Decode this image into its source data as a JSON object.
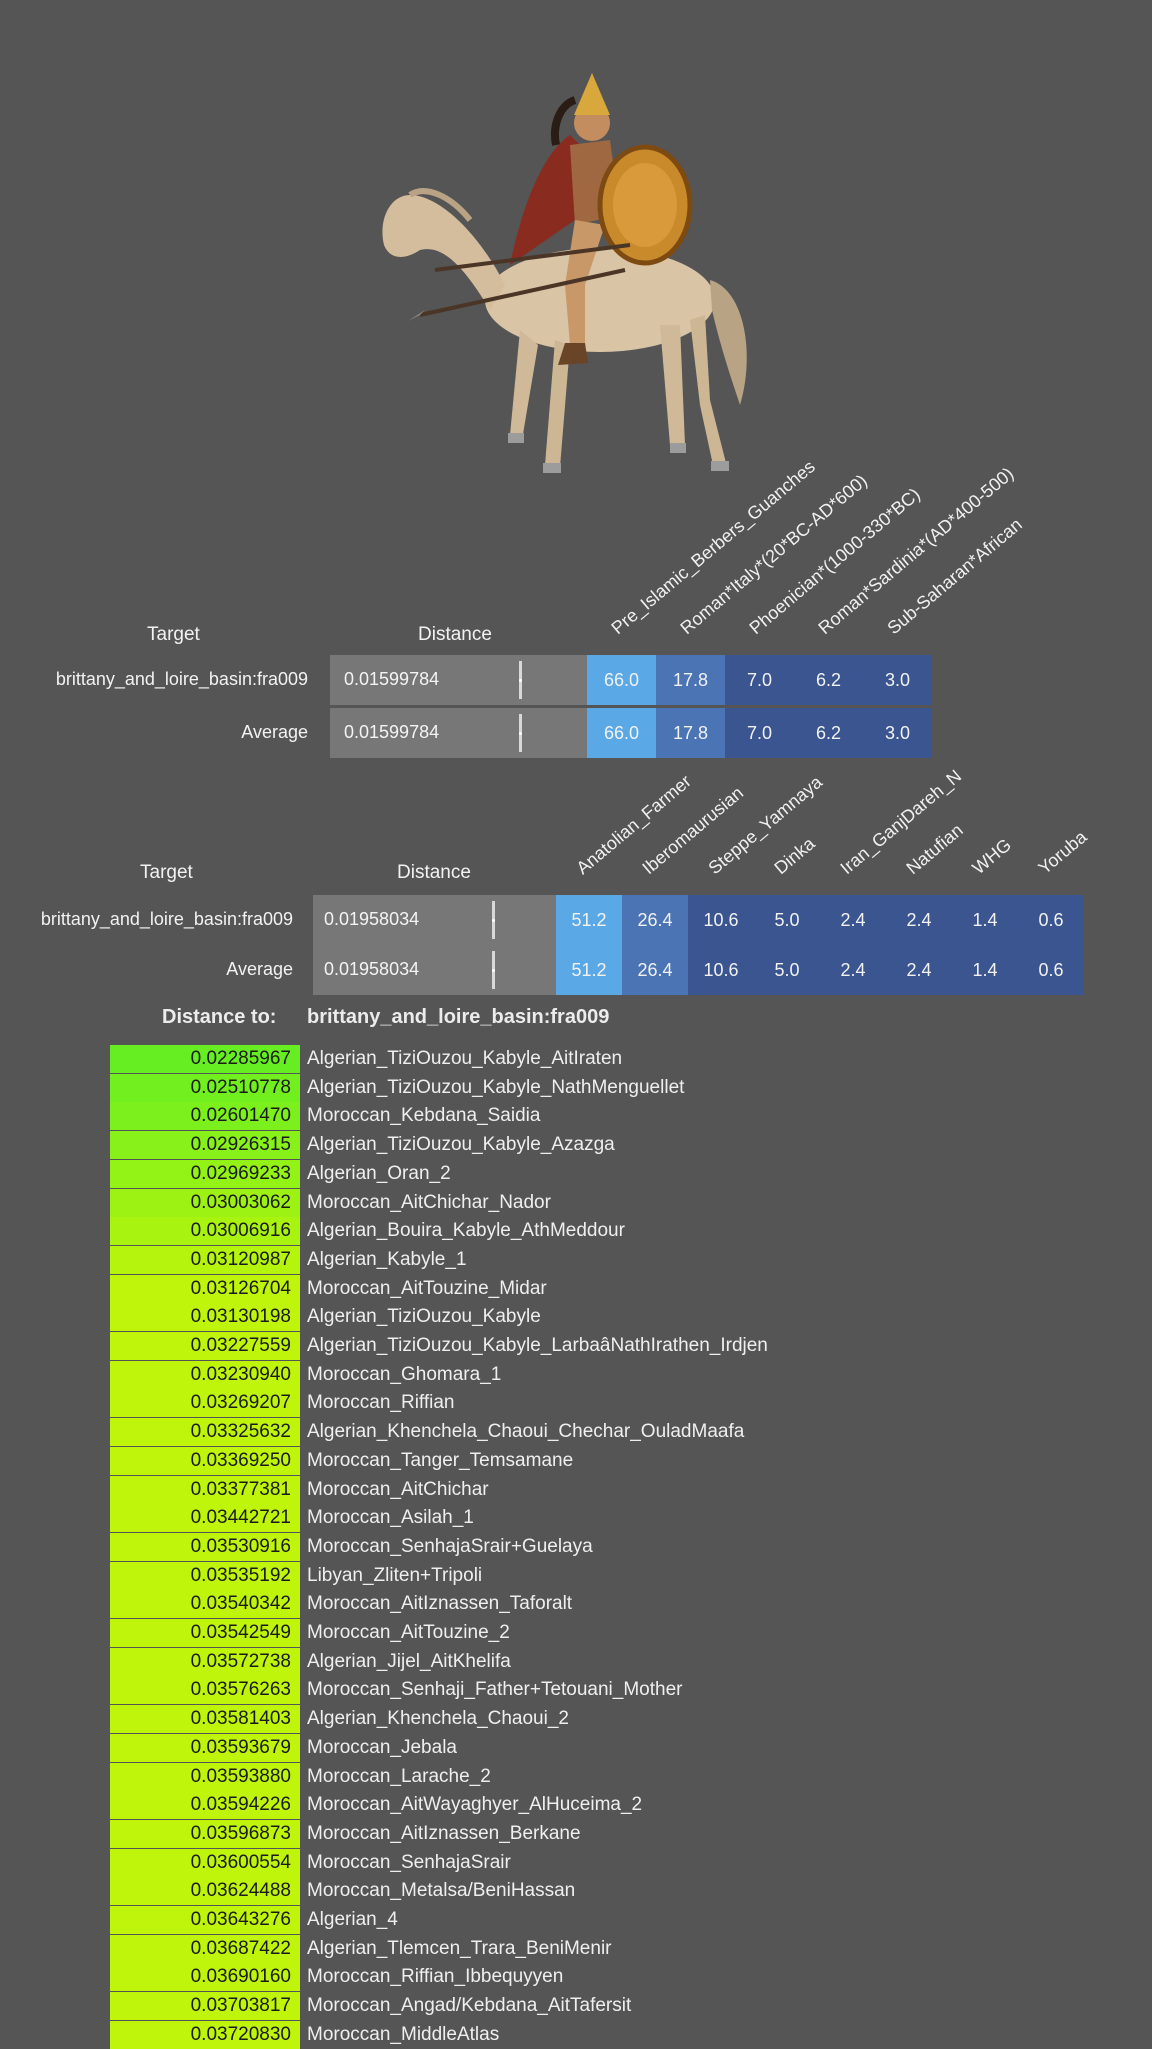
{
  "panel1": {
    "target_header": "Target",
    "distance_header": "Distance",
    "columns": [
      "Pre_Islamic_Berbers_Guanches",
      "Roman*Italy*(20*BC-AD*600)",
      "Phoenician*(1000-330*BC)",
      "Roman*Sardinia*(AD*400-500)",
      "Sub-Saharan*African"
    ],
    "rows": [
      {
        "label": "brittany_and_loire_basin:fra009",
        "distance": "0.01599784",
        "values": [
          "66.0",
          "17.8",
          "7.0",
          "6.2",
          "3.0"
        ]
      },
      {
        "label": "Average",
        "distance": "0.01599784",
        "values": [
          "66.0",
          "17.8",
          "7.0",
          "6.2",
          "3.0"
        ]
      }
    ]
  },
  "panel2": {
    "target_header": "Target",
    "distance_header": "Distance",
    "columns": [
      "Anatolian_Farmer",
      "Iberomaurusian",
      "Steppe_Yamnaya",
      "Dinka",
      "Iran_GanjDareh_N",
      "Natufian",
      "WHG",
      "Yoruba"
    ],
    "rows": [
      {
        "label": "brittany_and_loire_basin:fra009",
        "distance": "0.01958034",
        "values": [
          "51.2",
          "26.4",
          "10.6",
          "5.0",
          "2.4",
          "2.4",
          "1.4",
          "0.6"
        ]
      },
      {
        "label": "Average",
        "distance": "0.01958034",
        "values": [
          "51.2",
          "26.4",
          "10.6",
          "5.0",
          "2.4",
          "2.4",
          "1.4",
          "0.6"
        ]
      }
    ]
  },
  "distance_to": {
    "label": "Distance to:",
    "target": "brittany_and_loire_basin:fra009",
    "items": [
      {
        "value": "0.02285967",
        "name": "Algerian_TiziOuzou_Kabyle_AitIraten"
      },
      {
        "value": "0.02510778",
        "name": "Algerian_TiziOuzou_Kabyle_NathMenguellet"
      },
      {
        "value": "0.02601470",
        "name": "Moroccan_Kebdana_Saidia"
      },
      {
        "value": "0.02926315",
        "name": "Algerian_TiziOuzou_Kabyle_Azazga"
      },
      {
        "value": "0.02969233",
        "name": "Algerian_Oran_2"
      },
      {
        "value": "0.03003062",
        "name": "Moroccan_AitChichar_Nador"
      },
      {
        "value": "0.03006916",
        "name": "Algerian_Bouira_Kabyle_AthMeddour"
      },
      {
        "value": "0.03120987",
        "name": "Algerian_Kabyle_1"
      },
      {
        "value": "0.03126704",
        "name": "Moroccan_AitTouzine_Midar"
      },
      {
        "value": "0.03130198",
        "name": "Algerian_TiziOuzou_Kabyle"
      },
      {
        "value": "0.03227559",
        "name": "Algerian_TiziOuzou_Kabyle_LarbaâNathIrathen_Irdjen"
      },
      {
        "value": "0.03230940",
        "name": "Moroccan_Ghomara_1"
      },
      {
        "value": "0.03269207",
        "name": "Moroccan_Riffian"
      },
      {
        "value": "0.03325632",
        "name": "Algerian_Khenchela_Chaoui_Chechar_OuladMaafa"
      },
      {
        "value": "0.03369250",
        "name": "Moroccan_Tanger_Temsamane"
      },
      {
        "value": "0.03377381",
        "name": "Moroccan_AitChichar"
      },
      {
        "value": "0.03442721",
        "name": "Moroccan_Asilah_1"
      },
      {
        "value": "0.03530916",
        "name": "Moroccan_SenhajaSrair+Guelaya"
      },
      {
        "value": "0.03535192",
        "name": "Libyan_Zliten+Tripoli"
      },
      {
        "value": "0.03540342",
        "name": "Moroccan_AitIznassen_Taforalt"
      },
      {
        "value": "0.03542549",
        "name": "Moroccan_AitTouzine_2"
      },
      {
        "value": "0.03572738",
        "name": "Algerian_Jijel_AitKhelifa"
      },
      {
        "value": "0.03576263",
        "name": "Moroccan_Senhaji_Father+Tetouani_Mother"
      },
      {
        "value": "0.03581403",
        "name": "Algerian_Khenchela_Chaoui_2"
      },
      {
        "value": "0.03593679",
        "name": "Moroccan_Jebala"
      },
      {
        "value": "0.03593880",
        "name": "Moroccan_Larache_2"
      },
      {
        "value": "0.03594226",
        "name": "Moroccan_AitWayaghyer_AlHuceima_2"
      },
      {
        "value": "0.03596873",
        "name": "Moroccan_AitIznassen_Berkane"
      },
      {
        "value": "0.03600554",
        "name": "Moroccan_SenhajaSrair"
      },
      {
        "value": "0.03624488",
        "name": "Moroccan_Metalsa/BeniHassan"
      },
      {
        "value": "0.03643276",
        "name": "Algerian_4"
      },
      {
        "value": "0.03687422",
        "name": "Algerian_Tlemcen_Trara_BeniMenir"
      },
      {
        "value": "0.03690160",
        "name": "Moroccan_Riffian_Ibbequyyen"
      },
      {
        "value": "0.03703817",
        "name": "Moroccan_Angad/Kebdana_AitTafersit"
      },
      {
        "value": "0.03720830",
        "name": "Moroccan_MiddleAtlas"
      }
    ]
  },
  "colors": {
    "background": "#555555",
    "cell_light": "#5aa9e6",
    "cell_mid": "#4a74b3",
    "cell_dark": "#3b5590",
    "gradient_start": "#66ee22",
    "gradient_end": "#bff50a"
  },
  "illustration": "horse-rider-with-shield-illustration"
}
